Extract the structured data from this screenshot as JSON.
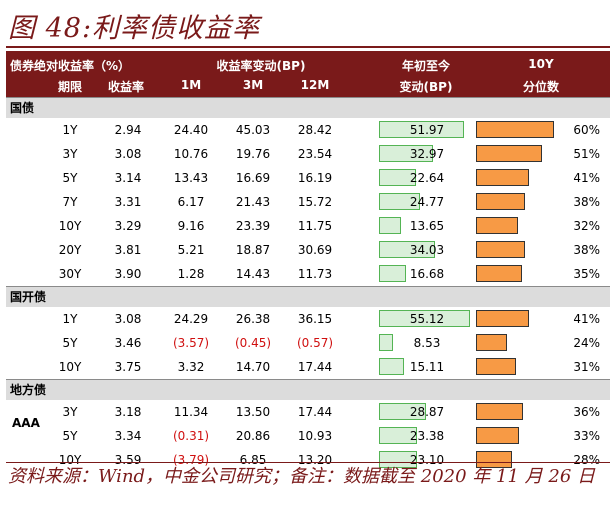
{
  "title": "图 48:利率债收益率",
  "header": {
    "c1": "债券绝对收益率（%）",
    "c2": "收益率变动(BP)",
    "c3a": "年初至今",
    "c3b": "变动(BP)",
    "c4a": "10Y",
    "c4b": "分位数",
    "term": "期限",
    "yield": "收益率",
    "m1": "1M",
    "m3": "3M",
    "m12": "12M"
  },
  "sections": [
    {
      "name": "国债",
      "rows": [
        {
          "term": "1Y",
          "yield": "2.94",
          "m1": "24.40",
          "m3": "45.03",
          "m12": "28.42",
          "ytd": "51.97",
          "pct": "60%",
          "ytd_v": 51.97,
          "pct_v": 60
        },
        {
          "term": "3Y",
          "yield": "3.08",
          "m1": "10.76",
          "m3": "19.76",
          "m12": "23.54",
          "ytd": "32.97",
          "pct": "51%",
          "ytd_v": 32.97,
          "pct_v": 51
        },
        {
          "term": "5Y",
          "yield": "3.14",
          "m1": "13.43",
          "m3": "16.69",
          "m12": "16.19",
          "ytd": "22.64",
          "pct": "41%",
          "ytd_v": 22.64,
          "pct_v": 41
        },
        {
          "term": "7Y",
          "yield": "3.31",
          "m1": "6.17",
          "m3": "21.43",
          "m12": "15.72",
          "ytd": "24.77",
          "pct": "38%",
          "ytd_v": 24.77,
          "pct_v": 38
        },
        {
          "term": "10Y",
          "yield": "3.29",
          "m1": "9.16",
          "m3": "23.39",
          "m12": "11.75",
          "ytd": "13.65",
          "pct": "32%",
          "ytd_v": 13.65,
          "pct_v": 32
        },
        {
          "term": "20Y",
          "yield": "3.81",
          "m1": "5.21",
          "m3": "18.87",
          "m12": "30.69",
          "ytd": "34.03",
          "pct": "38%",
          "ytd_v": 34.03,
          "pct_v": 38
        },
        {
          "term": "30Y",
          "yield": "3.90",
          "m1": "1.28",
          "m3": "14.43",
          "m12": "11.73",
          "ytd": "16.68",
          "pct": "35%",
          "ytd_v": 16.68,
          "pct_v": 35
        }
      ]
    },
    {
      "name": "国开债",
      "rows": [
        {
          "term": "1Y",
          "yield": "3.08",
          "m1": "24.29",
          "m3": "26.38",
          "m12": "36.15",
          "ytd": "55.12",
          "pct": "41%",
          "ytd_v": 55.12,
          "pct_v": 41
        },
        {
          "term": "5Y",
          "yield": "3.46",
          "m1": "(3.57)",
          "m3": "(0.45)",
          "m12": "(0.57)",
          "ytd": "8.53",
          "pct": "24%",
          "ytd_v": 8.53,
          "pct_v": 24
        },
        {
          "term": "10Y",
          "yield": "3.75",
          "m1": "3.32",
          "m3": "14.70",
          "m12": "17.44",
          "ytd": "15.11",
          "pct": "31%",
          "ytd_v": 15.11,
          "pct_v": 31
        }
      ]
    },
    {
      "name": "地方债",
      "rows": [
        {
          "term": "3Y",
          "yield": "3.18",
          "m1": "11.34",
          "m3": "13.50",
          "m12": "17.44",
          "ytd": "28.87",
          "pct": "36%",
          "ytd_v": 28.87,
          "pct_v": 36
        },
        {
          "term": "5Y",
          "yield": "3.34",
          "m1": "(0.31)",
          "m3": "20.86",
          "m12": "10.93",
          "ytd": "23.38",
          "pct": "33%",
          "ytd_v": 23.38,
          "pct_v": 33
        },
        {
          "term": "10Y",
          "yield": "3.59",
          "m1": "(3.79)",
          "m3": "6.85",
          "m12": "13.20",
          "ytd": "23.10",
          "pct": "28%",
          "ytd_v": 23.1,
          "pct_v": 28
        }
      ]
    }
  ],
  "aaa_label": "AAA",
  "source": "资料来源：Wind，中金公司研究；备注：数据截至 2020 年 11 月 26 日",
  "colors": {
    "brand": "#7a1a1a",
    "ytd_fill": "#d9efd9",
    "ytd_border": "#54b454",
    "pct_fill": "#f79a45",
    "negative": "#d01010"
  }
}
